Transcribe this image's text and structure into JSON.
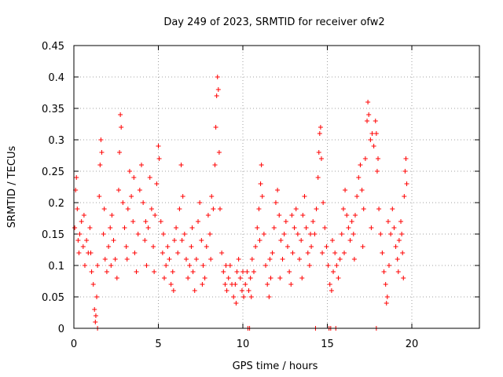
{
  "chart_data": {
    "type": "scatter",
    "title": "Day 249 of 2023, SRMTID for receiver ofw2",
    "xlabel": "GPS time / hours",
    "ylabel": "SRMTID / TECUs",
    "xlim": [
      0,
      24
    ],
    "ylim": [
      0,
      0.45
    ],
    "xticks": [
      0,
      5,
      10,
      15,
      20
    ],
    "xtick_labels": [
      "0",
      "5",
      "10",
      "15",
      "20"
    ],
    "yticks": [
      0,
      0.05,
      0.1,
      0.15,
      0.2,
      0.25,
      0.3,
      0.35,
      0.4,
      0.45
    ],
    "ytick_labels": [
      "0",
      "0.05",
      "0.1",
      "0.15",
      "0.2",
      "0.25",
      "0.3",
      "0.35",
      "0.4",
      "0.45"
    ],
    "grid": true,
    "marker": "+",
    "series": [
      {
        "name": "SRMTID",
        "color": "#ff0000",
        "points": [
          [
            0.05,
            0.16
          ],
          [
            0.1,
            0.22
          ],
          [
            0.15,
            0.24
          ],
          [
            0.2,
            0.19
          ],
          [
            0.25,
            0.14
          ],
          [
            0.3,
            0.12
          ],
          [
            0.35,
            0.15
          ],
          [
            0.45,
            0.17
          ],
          [
            0.55,
            0.13
          ],
          [
            0.65,
            0.1
          ],
          [
            0.75,
            0.14
          ],
          [
            0.85,
            0.12
          ],
          [
            0.95,
            0.16
          ],
          [
            1.05,
            0.09
          ],
          [
            1.15,
            0.07
          ],
          [
            1.22,
            0.03
          ],
          [
            1.27,
            0.01
          ],
          [
            1.3,
            0.02
          ],
          [
            1.35,
            0.05
          ],
          [
            1.4,
            0.1
          ],
          [
            1.5,
            0.21
          ],
          [
            1.55,
            0.26
          ],
          [
            1.6,
            0.3
          ],
          [
            1.65,
            0.28
          ],
          [
            1.75,
            0.15
          ],
          [
            1.85,
            0.11
          ],
          [
            1.95,
            0.09
          ],
          [
            2.05,
            0.13
          ],
          [
            2.15,
            0.16
          ],
          [
            2.25,
            0.18
          ],
          [
            2.35,
            0.14
          ],
          [
            2.45,
            0.11
          ],
          [
            2.55,
            0.08
          ],
          [
            2.65,
            0.22
          ],
          [
            2.7,
            0.28
          ],
          [
            2.75,
            0.34
          ],
          [
            2.8,
            0.32
          ],
          [
            2.9,
            0.2
          ],
          [
            3.0,
            0.16
          ],
          [
            3.1,
            0.13
          ],
          [
            3.2,
            0.19
          ],
          [
            3.3,
            0.25
          ],
          [
            3.4,
            0.21
          ],
          [
            3.5,
            0.17
          ],
          [
            3.6,
            0.12
          ],
          [
            3.7,
            0.09
          ],
          [
            3.8,
            0.15
          ],
          [
            3.9,
            0.22
          ],
          [
            4.0,
            0.26
          ],
          [
            4.1,
            0.2
          ],
          [
            4.2,
            0.14
          ],
          [
            4.3,
            0.1
          ],
          [
            4.4,
            0.16
          ],
          [
            4.5,
            0.24
          ],
          [
            4.6,
            0.19
          ],
          [
            4.7,
            0.13
          ],
          [
            4.8,
            0.18
          ],
          [
            4.9,
            0.23
          ],
          [
            5.0,
            0.29
          ],
          [
            5.05,
            0.27
          ],
          [
            5.15,
            0.17
          ],
          [
            5.25,
            0.12
          ],
          [
            5.35,
            0.08
          ],
          [
            5.45,
            0.1
          ],
          [
            5.55,
            0.13
          ],
          [
            5.65,
            0.11
          ],
          [
            5.75,
            0.07
          ],
          [
            5.85,
            0.09
          ],
          [
            5.95,
            0.14
          ],
          [
            6.05,
            0.16
          ],
          [
            6.15,
            0.12
          ],
          [
            6.25,
            0.19
          ],
          [
            6.35,
            0.26
          ],
          [
            6.45,
            0.21
          ],
          [
            6.55,
            0.15
          ],
          [
            6.65,
            0.11
          ],
          [
            6.75,
            0.08
          ],
          [
            6.85,
            0.1
          ],
          [
            6.95,
            0.13
          ],
          [
            7.05,
            0.09
          ],
          [
            7.15,
            0.06
          ],
          [
            7.25,
            0.11
          ],
          [
            7.35,
            0.17
          ],
          [
            7.45,
            0.2
          ],
          [
            7.55,
            0.14
          ],
          [
            7.65,
            0.1
          ],
          [
            7.75,
            0.08
          ],
          [
            7.85,
            0.13
          ],
          [
            7.95,
            0.18
          ],
          [
            8.05,
            0.15
          ],
          [
            8.15,
            0.21
          ],
          [
            8.25,
            0.19
          ],
          [
            8.35,
            0.26
          ],
          [
            8.4,
            0.32
          ],
          [
            8.45,
            0.37
          ],
          [
            8.5,
            0.4
          ],
          [
            8.55,
            0.38
          ],
          [
            8.6,
            0.28
          ],
          [
            8.65,
            0.19
          ],
          [
            8.75,
            0.12
          ],
          [
            8.85,
            0.09
          ],
          [
            8.95,
            0.07
          ],
          [
            9.05,
            0.06
          ],
          [
            9.15,
            0.08
          ],
          [
            9.25,
            0.1
          ],
          [
            9.35,
            0.07
          ],
          [
            9.45,
            0.05
          ],
          [
            9.55,
            0.07
          ],
          [
            9.65,
            0.09
          ],
          [
            9.75,
            0.11
          ],
          [
            9.85,
            0.08
          ],
          [
            9.95,
            0.06
          ],
          [
            10.05,
            0.05
          ],
          [
            10.15,
            0.07
          ],
          [
            10.25,
            0.09
          ],
          [
            10.35,
            0.06
          ],
          [
            10.45,
            0.08
          ],
          [
            10.55,
            0.11
          ],
          [
            10.65,
            0.09
          ],
          [
            10.75,
            0.13
          ],
          [
            10.85,
            0.16
          ],
          [
            10.95,
            0.19
          ],
          [
            11.05,
            0.23
          ],
          [
            11.1,
            0.26
          ],
          [
            11.15,
            0.21
          ],
          [
            11.25,
            0.15
          ],
          [
            11.35,
            0.1
          ],
          [
            11.45,
            0.07
          ],
          [
            11.55,
            0.05
          ],
          [
            11.65,
            0.08
          ],
          [
            11.75,
            0.12
          ],
          [
            11.85,
            0.16
          ],
          [
            11.95,
            0.2
          ],
          [
            12.05,
            0.22
          ],
          [
            12.15,
            0.18
          ],
          [
            12.25,
            0.14
          ],
          [
            12.35,
            0.11
          ],
          [
            12.45,
            0.15
          ],
          [
            12.55,
            0.17
          ],
          [
            12.65,
            0.13
          ],
          [
            12.75,
            0.09
          ],
          [
            12.85,
            0.07
          ],
          [
            12.95,
            0.12
          ],
          [
            13.05,
            0.16
          ],
          [
            13.15,
            0.19
          ],
          [
            13.25,
            0.15
          ],
          [
            13.35,
            0.11
          ],
          [
            13.45,
            0.14
          ],
          [
            13.55,
            0.18
          ],
          [
            13.65,
            0.21
          ],
          [
            13.75,
            0.16
          ],
          [
            13.85,
            0.12
          ],
          [
            13.95,
            0.1
          ],
          [
            14.05,
            0.13
          ],
          [
            14.15,
            0.17
          ],
          [
            14.25,
            0.15
          ],
          [
            14.35,
            0.19
          ],
          [
            14.45,
            0.24
          ],
          [
            14.5,
            0.28
          ],
          [
            14.55,
            0.31
          ],
          [
            14.6,
            0.32
          ],
          [
            14.65,
            0.27
          ],
          [
            14.75,
            0.2
          ],
          [
            14.85,
            0.16
          ],
          [
            14.95,
            0.13
          ],
          [
            15.05,
            0.1
          ],
          [
            15.15,
            0.07
          ],
          [
            15.25,
            0.06
          ],
          [
            15.35,
            0.09
          ],
          [
            15.45,
            0.12
          ],
          [
            15.55,
            0.1
          ],
          [
            15.65,
            0.08
          ],
          [
            15.75,
            0.11
          ],
          [
            15.85,
            0.15
          ],
          [
            15.95,
            0.19
          ],
          [
            16.05,
            0.22
          ],
          [
            16.15,
            0.18
          ],
          [
            16.25,
            0.16
          ],
          [
            16.35,
            0.14
          ],
          [
            16.45,
            0.17
          ],
          [
            16.55,
            0.15
          ],
          [
            16.65,
            0.18
          ],
          [
            16.75,
            0.21
          ],
          [
            16.85,
            0.24
          ],
          [
            16.95,
            0.26
          ],
          [
            17.05,
            0.22
          ],
          [
            17.15,
            0.19
          ],
          [
            17.25,
            0.27
          ],
          [
            17.35,
            0.33
          ],
          [
            17.4,
            0.36
          ],
          [
            17.45,
            0.34
          ],
          [
            17.55,
            0.3
          ],
          [
            17.65,
            0.31
          ],
          [
            17.75,
            0.29
          ],
          [
            17.85,
            0.33
          ],
          [
            17.9,
            0.31
          ],
          [
            17.95,
            0.25
          ],
          [
            18.05,
            0.19
          ],
          [
            18.15,
            0.15
          ],
          [
            18.25,
            0.12
          ],
          [
            18.35,
            0.09
          ],
          [
            18.45,
            0.07
          ],
          [
            18.5,
            0.04
          ],
          [
            18.55,
            0.05
          ],
          [
            18.65,
            0.1
          ],
          [
            18.75,
            0.15
          ],
          [
            18.85,
            0.19
          ],
          [
            18.95,
            0.16
          ],
          [
            19.05,
            0.13
          ],
          [
            19.15,
            0.11
          ],
          [
            19.25,
            0.14
          ],
          [
            19.35,
            0.17
          ],
          [
            19.45,
            0.12
          ],
          [
            19.5,
            0.08
          ],
          [
            19.55,
            0.21
          ],
          [
            19.6,
            0.25
          ],
          [
            19.65,
            0.27
          ],
          [
            19.7,
            0.23
          ],
          [
            0.6,
            0.18
          ],
          [
            1.0,
            0.12
          ],
          [
            1.8,
            0.19
          ],
          [
            2.2,
            0.1
          ],
          [
            3.15,
            0.11
          ],
          [
            3.55,
            0.24
          ],
          [
            4.25,
            0.17
          ],
          [
            4.75,
            0.09
          ],
          [
            5.3,
            0.15
          ],
          [
            5.9,
            0.06
          ],
          [
            6.4,
            0.14
          ],
          [
            7.0,
            0.16
          ],
          [
            7.6,
            0.07
          ],
          [
            8.1,
            0.11
          ],
          [
            9.0,
            0.1
          ],
          [
            9.6,
            0.04
          ],
          [
            10.0,
            0.09
          ],
          [
            10.5,
            0.05
          ],
          [
            11.0,
            0.14
          ],
          [
            11.6,
            0.11
          ],
          [
            12.2,
            0.08
          ],
          [
            12.9,
            0.18
          ],
          [
            13.5,
            0.08
          ],
          [
            14.0,
            0.15
          ],
          [
            14.7,
            0.12
          ],
          [
            15.3,
            0.14
          ],
          [
            16.0,
            0.12
          ],
          [
            16.6,
            0.11
          ],
          [
            17.1,
            0.13
          ],
          [
            17.6,
            0.16
          ],
          [
            18.0,
            0.27
          ],
          [
            18.6,
            0.17
          ],
          [
            19.2,
            0.09
          ],
          [
            19.4,
            0.15
          ]
        ],
        "zero_points": [
          1.4,
          10.3,
          10.4,
          14.3,
          15.1,
          15.2,
          15.5,
          17.9
        ]
      }
    ]
  }
}
